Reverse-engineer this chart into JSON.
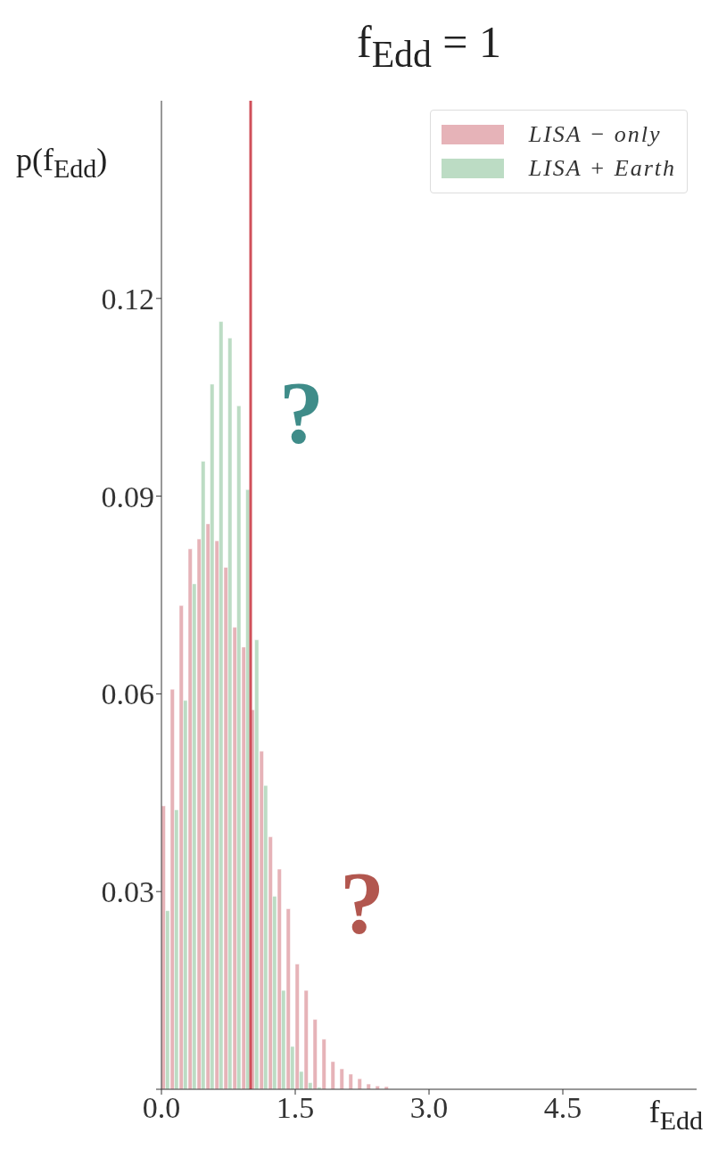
{
  "chart_data": {
    "type": "histogram",
    "title": "f$_{Edd}$ = 1",
    "xlabel": "f$_{Edd}$",
    "ylabel": "p(f$_{Edd}$)",
    "bins": [
      0,
      0.1,
      0.2,
      0.3,
      0.4,
      0.5,
      0.6,
      0.7,
      0.8,
      0.9,
      1.0,
      1.1,
      1.2,
      1.3,
      1.4,
      1.5,
      1.6,
      1.7,
      1.8,
      1.9,
      2.0,
      2.1,
      2.2,
      2.3,
      2.4,
      2.5,
      2.6
    ],
    "series": [
      {
        "name": "LISA − only",
        "color": "#e6b3b8",
        "values": [
          0.043,
          0.0607,
          0.0734,
          0.082,
          0.0835,
          0.0858,
          0.0832,
          0.0792,
          0.0701,
          0.0671,
          0.0576,
          0.0513,
          0.0383,
          0.0334,
          0.0274,
          0.019,
          0.015,
          0.0106,
          0.0076,
          0.0042,
          0.0031,
          0.0023,
          0.0016,
          0.0008,
          0.0005,
          0.0004
        ]
      },
      {
        "name": "LISA + Earth",
        "color": "#bcdcc4",
        "values": [
          0.0271,
          0.0424,
          0.059,
          0.0767,
          0.0953,
          0.107,
          0.1165,
          0.114,
          0.1037,
          0.091,
          0.0682,
          0.0461,
          0.0293,
          0.015,
          0.0065,
          0.0027,
          0.001,
          0.0003,
          0,
          0,
          0,
          0,
          0,
          0,
          0,
          0
        ]
      }
    ],
    "xlim": [
      0,
      6
    ],
    "xticks": [
      {
        "value": 0,
        "label": "0.0"
      },
      {
        "value": 1.5,
        "label": "1.5"
      },
      {
        "value": 3,
        "label": "3.0"
      },
      {
        "value": 4.5,
        "label": "4.5"
      }
    ],
    "ylim": [
      0,
      0.15
    ],
    "yticks": [
      {
        "value": 0,
        "label": null
      },
      0.03,
      0.06,
      0.09,
      0.12
    ],
    "ref_lines": [
      {
        "axis": "x",
        "value": 1.0,
        "color": "#d0505a"
      }
    ],
    "annotations": [
      "?",
      "?"
    ],
    "legend": "top right",
    "grid": false
  }
}
